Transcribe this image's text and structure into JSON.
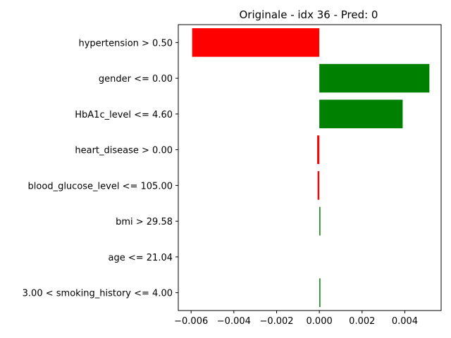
{
  "chart_data": {
    "type": "bar",
    "orientation": "horizontal",
    "title": "Originale - idx 36 - Pred: 0",
    "xlabel": "",
    "ylabel": "",
    "xlim": [
      -0.0066,
      0.0057
    ],
    "x_ticks": [
      -0.006,
      -0.004,
      -0.002,
      0.0,
      0.002,
      0.004
    ],
    "x_tick_labels": [
      "−0.006",
      "−0.004",
      "−0.002",
      "0.000",
      "0.002",
      "0.004"
    ],
    "grid": false,
    "categories": [
      "hypertension > 0.50",
      "gender <= 0.00",
      "HbA1c_level <= 4.60",
      "heart_disease > 0.00",
      "blood_glucose_level <= 105.00",
      "bmi > 29.58",
      "age <= 21.04",
      "3.00 < smoking_history <= 4.00"
    ],
    "values": [
      -0.00595,
      0.00515,
      0.0039,
      -0.0001,
      -8e-05,
      5e-05,
      0.0,
      2e-05
    ],
    "colors": {
      "positive": "#008000",
      "negative": "#ff0000"
    }
  }
}
